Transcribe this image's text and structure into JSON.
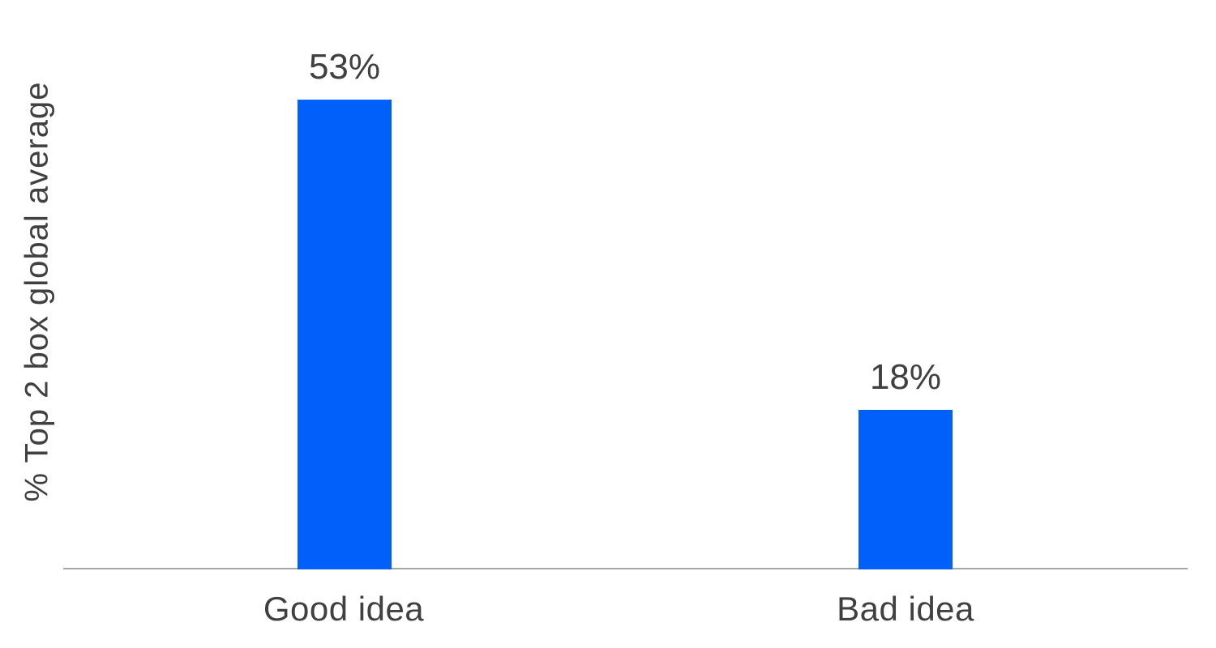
{
  "chart_data": {
    "type": "bar",
    "categories": [
      "Good idea",
      "Bad idea"
    ],
    "values": [
      53,
      18
    ],
    "value_labels": [
      "53%",
      "18%"
    ],
    "title": "",
    "xlabel": "",
    "ylabel": "% Top 2 box global average",
    "ylim": [
      0,
      53
    ],
    "grid": false,
    "legend": false,
    "colors": {
      "bar": "#015ffa",
      "axis_line": "#a6a6a6",
      "text": "#404040"
    }
  }
}
